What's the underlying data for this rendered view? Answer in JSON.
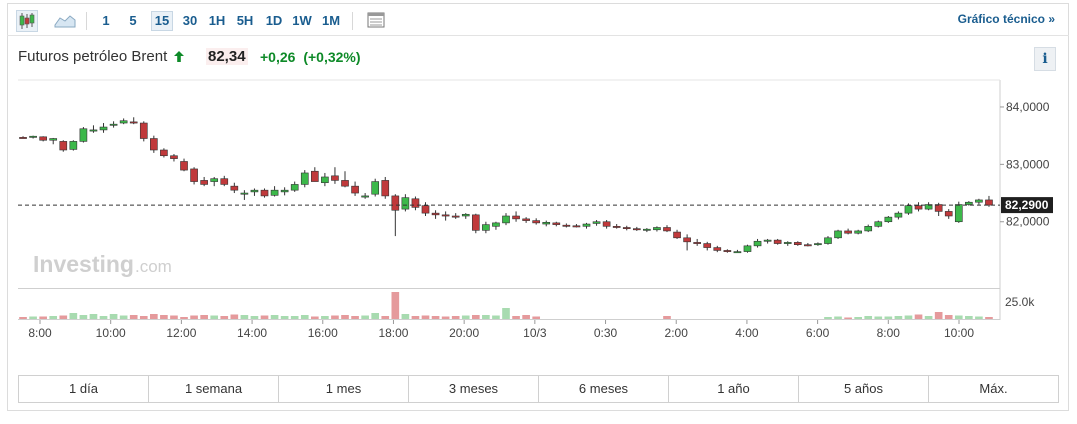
{
  "toolbar": {
    "intervals": [
      "1",
      "5",
      "15",
      "30",
      "1H",
      "5H",
      "1D",
      "1W",
      "1M"
    ],
    "active_interval": "15",
    "technical_link": "Gráfico técnico »",
    "icons": [
      "candlestick-chart-icon",
      "area-chart-icon",
      "table-view-icon"
    ]
  },
  "header": {
    "instrument": "Futuros petróleo Brent",
    "direction": "up",
    "price": "82,34",
    "change": "+0,26",
    "change_pct": "(+0,32%)",
    "info_label": "i"
  },
  "watermark": {
    "brand": "Investing",
    "suffix": ".com"
  },
  "range_buttons": [
    "1 día",
    "1 semana",
    "1 mes",
    "3 meses",
    "6 meses",
    "1 año",
    "5 años",
    "Máx."
  ],
  "colors": {
    "up": "#3cb84a",
    "down": "#c0393b",
    "accent": "#1a5d8f",
    "positive_text": "#0e8a28"
  },
  "chart_data": {
    "type": "candlestick",
    "y_ticks": [
      "84,0000",
      "83,0000",
      "82,0000"
    ],
    "y_tick_values": [
      84,
      83,
      82
    ],
    "ylim": [
      80.95,
      84.4
    ],
    "last_price_label": "82,2900",
    "last_price": 82.29,
    "volume_tick": "25.0k",
    "x_tick_labels": [
      "8:00",
      "10:00",
      "12:00",
      "14:00",
      "16:00",
      "18:00",
      "20:00",
      "10/3",
      "0:30",
      "2:00",
      "4:00",
      "6:00",
      "8:00",
      "10:00"
    ],
    "candles": [
      [
        83.47,
        83.49,
        83.45,
        83.46
      ],
      [
        83.47,
        83.5,
        83.45,
        83.49
      ],
      [
        83.48,
        83.49,
        83.4,
        83.42
      ],
      [
        83.42,
        83.46,
        83.35,
        83.45
      ],
      [
        83.4,
        83.42,
        83.22,
        83.25
      ],
      [
        83.26,
        83.42,
        83.24,
        83.4
      ],
      [
        83.4,
        83.65,
        83.38,
        83.62
      ],
      [
        83.58,
        83.68,
        83.55,
        83.6
      ],
      [
        83.6,
        83.72,
        83.55,
        83.65
      ],
      [
        83.68,
        83.75,
        83.64,
        83.7
      ],
      [
        83.72,
        83.8,
        83.7,
        83.76
      ],
      [
        83.74,
        83.82,
        83.7,
        83.72
      ],
      [
        83.72,
        83.75,
        83.4,
        83.45
      ],
      [
        83.45,
        83.5,
        83.2,
        83.25
      ],
      [
        83.25,
        83.28,
        83.12,
        83.15
      ],
      [
        83.15,
        83.18,
        83.05,
        83.1
      ],
      [
        83.05,
        83.1,
        82.88,
        82.9
      ],
      [
        82.92,
        82.95,
        82.65,
        82.7
      ],
      [
        82.72,
        82.78,
        82.62,
        82.65
      ],
      [
        82.7,
        82.78,
        82.62,
        82.75
      ],
      [
        82.75,
        82.8,
        82.62,
        82.65
      ],
      [
        82.62,
        82.68,
        82.5,
        82.55
      ],
      [
        82.5,
        82.55,
        82.38,
        82.5
      ],
      [
        82.52,
        82.58,
        82.45,
        82.55
      ],
      [
        82.55,
        82.58,
        82.42,
        82.45
      ],
      [
        82.46,
        82.62,
        82.44,
        82.55
      ],
      [
        82.52,
        82.6,
        82.46,
        82.55
      ],
      [
        82.55,
        82.7,
        82.52,
        82.65
      ],
      [
        82.65,
        82.9,
        82.6,
        82.85
      ],
      [
        82.88,
        82.95,
        82.7,
        82.7
      ],
      [
        82.68,
        82.85,
        82.62,
        82.78
      ],
      [
        82.8,
        82.95,
        82.66,
        82.72
      ],
      [
        82.72,
        82.88,
        82.6,
        82.62
      ],
      [
        82.62,
        82.7,
        82.45,
        82.5
      ],
      [
        82.45,
        82.5,
        82.4,
        82.45
      ],
      [
        82.48,
        82.75,
        82.44,
        82.7
      ],
      [
        82.72,
        82.78,
        82.4,
        82.45
      ],
      [
        82.45,
        82.48,
        81.75,
        82.2
      ],
      [
        82.22,
        82.48,
        82.18,
        82.42
      ],
      [
        82.4,
        82.44,
        82.2,
        82.25
      ],
      [
        82.28,
        82.34,
        82.1,
        82.15
      ],
      [
        82.15,
        82.2,
        82.05,
        82.12
      ],
      [
        82.12,
        82.18,
        82.02,
        82.1
      ],
      [
        82.1,
        82.15,
        82.05,
        82.08
      ],
      [
        82.1,
        82.15,
        82.05,
        82.13
      ],
      [
        82.12,
        82.14,
        81.8,
        81.85
      ],
      [
        81.85,
        82.0,
        81.8,
        81.95
      ],
      [
        81.92,
        82.0,
        81.86,
        81.98
      ],
      [
        81.98,
        82.15,
        81.94,
        82.1
      ],
      [
        82.1,
        82.18,
        82.0,
        82.05
      ],
      [
        82.05,
        82.08,
        81.98,
        82.02
      ],
      [
        82.02,
        82.06,
        81.95,
        81.98
      ],
      [
        81.96,
        82.02,
        81.92,
        81.99
      ],
      [
        81.98,
        82.0,
        81.92,
        81.95
      ],
      [
        81.94,
        81.97,
        81.9,
        81.93
      ],
      [
        81.93,
        81.96,
        81.9,
        81.92
      ],
      [
        81.92,
        81.98,
        81.88,
        81.96
      ],
      [
        81.97,
        82.03,
        81.93,
        82.0
      ],
      [
        82.0,
        82.03,
        81.88,
        81.92
      ],
      [
        81.92,
        81.96,
        81.88,
        81.9
      ],
      [
        81.9,
        81.93,
        81.85,
        81.88
      ],
      [
        81.88,
        81.91,
        81.84,
        81.86
      ],
      [
        81.85,
        81.89,
        81.82,
        81.87
      ],
      [
        81.86,
        81.92,
        81.83,
        81.9
      ],
      [
        81.9,
        81.94,
        81.82,
        81.84
      ],
      [
        81.82,
        81.86,
        81.7,
        81.72
      ],
      [
        81.72,
        81.78,
        81.5,
        81.65
      ],
      [
        81.64,
        81.7,
        81.58,
        81.62
      ],
      [
        81.62,
        81.65,
        81.5,
        81.55
      ],
      [
        81.55,
        81.58,
        81.47,
        81.5
      ],
      [
        81.5,
        81.52,
        81.46,
        81.48
      ],
      [
        81.48,
        81.51,
        81.46,
        81.48
      ],
      [
        81.48,
        81.6,
        81.46,
        81.58
      ],
      [
        81.58,
        81.7,
        81.55,
        81.66
      ],
      [
        81.66,
        81.7,
        81.62,
        81.68
      ],
      [
        81.68,
        81.7,
        81.6,
        81.62
      ],
      [
        81.62,
        81.66,
        81.58,
        81.64
      ],
      [
        81.64,
        81.66,
        81.58,
        81.6
      ],
      [
        81.6,
        81.63,
        81.57,
        81.59
      ],
      [
        81.6,
        81.64,
        81.58,
        81.62
      ],
      [
        81.62,
        81.75,
        81.6,
        81.72
      ],
      [
        81.72,
        81.86,
        81.7,
        81.84
      ],
      [
        81.84,
        81.88,
        81.78,
        81.8
      ],
      [
        81.8,
        81.86,
        81.78,
        81.84
      ],
      [
        81.84,
        81.95,
        81.82,
        81.92
      ],
      [
        81.92,
        82.02,
        81.9,
        82.0
      ],
      [
        82.0,
        82.1,
        81.98,
        82.08
      ],
      [
        82.08,
        82.18,
        82.04,
        82.15
      ],
      [
        82.15,
        82.32,
        82.12,
        82.28
      ],
      [
        82.28,
        82.34,
        82.18,
        82.22
      ],
      [
        82.22,
        82.34,
        82.2,
        82.3
      ],
      [
        82.3,
        82.33,
        82.1,
        82.18
      ],
      [
        82.18,
        82.22,
        82.05,
        82.1
      ],
      [
        82.0,
        82.35,
        81.98,
        82.3
      ],
      [
        82.3,
        82.36,
        82.28,
        82.34
      ],
      [
        82.34,
        82.4,
        82.3,
        82.38
      ],
      [
        82.38,
        82.45,
        82.26,
        82.29
      ]
    ],
    "volume_scale_max": 30000,
    "volumes": [
      2000,
      2500,
      2500,
      3000,
      3500,
      6000,
      4000,
      5000,
      3000,
      5000,
      3500,
      4000,
      3000,
      5000,
      4000,
      3500,
      2000,
      3500,
      4000,
      3500,
      3000,
      4500,
      4000,
      3000,
      3500,
      4000,
      3000,
      3000,
      4000,
      2500,
      3000,
      3500,
      4000,
      3000,
      3500,
      6000,
      3000,
      27000,
      5000,
      3000,
      3500,
      3000,
      2500,
      3000,
      3500,
      4000,
      4000,
      3500,
      11000,
      3000,
      4000,
      2500,
      0,
      0,
      0,
      0,
      0,
      0,
      0,
      0,
      0,
      0,
      0,
      0,
      3000,
      0,
      0,
      0,
      0,
      0,
      0,
      0,
      0,
      0,
      0,
      0,
      0,
      0,
      0,
      0,
      2000,
      2500,
      1500,
      2000,
      3000,
      2500,
      2500,
      3000,
      3500,
      4500,
      3000,
      7000,
      4000,
      3500,
      3000,
      2500,
      2000
    ]
  }
}
